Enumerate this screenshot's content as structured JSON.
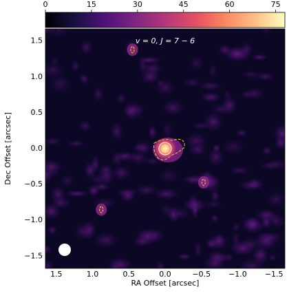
{
  "chart_data": {
    "type": "image",
    "annotation": "v = 0, J = 7 − 6",
    "xlabel": "RA Offset [arcsec]",
    "ylabel": "Dec Offset [arcsec]",
    "xlim": [
      1.65,
      -1.65
    ],
    "ylim": [
      -1.67,
      1.67
    ],
    "xticks": [
      {
        "value": 1.5,
        "label": "1.5"
      },
      {
        "value": 1,
        "label": "1.0"
      },
      {
        "value": 0.5,
        "label": "0.5"
      },
      {
        "value": 0,
        "label": "0.0"
      },
      {
        "value": -0.5,
        "label": "−0.5"
      },
      {
        "value": -1,
        "label": "−1.0"
      },
      {
        "value": -1.5,
        "label": "−1.5"
      }
    ],
    "yticks": [
      {
        "value": -1.5,
        "label": "−1.5"
      },
      {
        "value": -1,
        "label": "−1.0"
      },
      {
        "value": -0.5,
        "label": "−0.5"
      },
      {
        "value": 0,
        "label": "0.0"
      },
      {
        "value": 0.5,
        "label": "0.5"
      },
      {
        "value": 1,
        "label": "1.0"
      },
      {
        "value": 1.5,
        "label": "1.5"
      }
    ],
    "colorbar": {
      "lim": [
        0,
        78
      ],
      "ticks": [
        0,
        15,
        30,
        45,
        60,
        75
      ]
    },
    "sources": {
      "x": [
        0,
        -0.53,
        0.88,
        0.45
      ],
      "y": [
        0,
        -0.47,
        -0.85,
        1.38
      ],
      "values": [
        75,
        22,
        20,
        20
      ]
    }
  }
}
